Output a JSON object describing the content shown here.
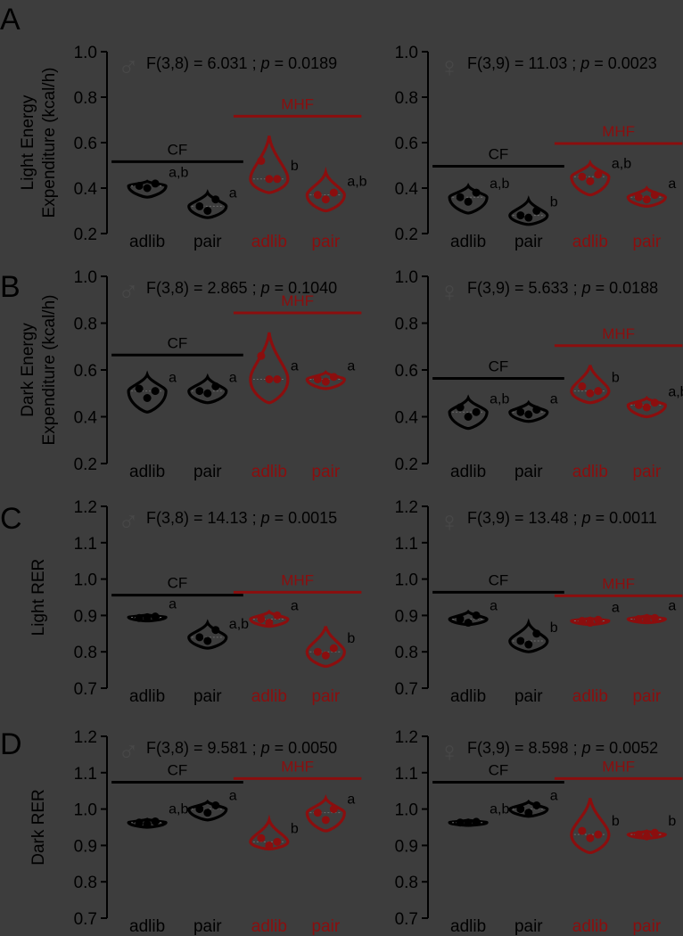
{
  "colors": {
    "background": "#3d3d3d",
    "cf": "#000000",
    "mhf": "#8b0e0e",
    "median_line": "#6a6a6a"
  },
  "panel_letters": [
    "A",
    "B",
    "C",
    "D"
  ],
  "chart_data": [
    {
      "panel": "A",
      "sex": "male",
      "sex_symbol": "♂",
      "type": "violin",
      "ylabel_lines": [
        "Light Energy",
        "Expenditure (kcal/h)"
      ],
      "ylim": [
        0.2,
        1.0
      ],
      "yticks": [
        "0.2",
        "0.4",
        "0.6",
        "0.8",
        "1.0"
      ],
      "stat": {
        "pre": "F(3,8) = 6.031 ; ",
        "p": "p",
        "post": " = 0.0189"
      },
      "categories": [
        "adlib",
        "pair",
        "adlib",
        "pair"
      ],
      "groups": [
        "CF",
        "CF",
        "MHF",
        "MHF"
      ],
      "group_labels": {
        "CF": "CF",
        "MHF": "MHF"
      },
      "letters": [
        "a,b",
        "a",
        "b",
        "a,b"
      ],
      "values": [
        [
          0.41,
          0.4,
          0.42
        ],
        [
          0.32,
          0.3,
          0.35
        ],
        [
          0.52,
          0.44,
          0.44
        ],
        [
          0.37,
          0.35,
          0.38
        ]
      ],
      "ranges": [
        [
          0.36,
          0.43
        ],
        [
          0.27,
          0.38
        ],
        [
          0.38,
          0.63
        ],
        [
          0.3,
          0.47
        ]
      ]
    },
    {
      "panel": "A",
      "sex": "female",
      "sex_symbol": "♀",
      "type": "violin",
      "ylabel_lines": [],
      "ylim": [
        0.2,
        1.0
      ],
      "yticks": [
        "0.2",
        "0.4",
        "0.6",
        "0.8",
        "1.0"
      ],
      "stat": {
        "pre": "F(3,9) = 11.03 ; ",
        "p": "p",
        "post": " = 0.0023"
      },
      "categories": [
        "adlib",
        "pair",
        "adlib",
        "pair"
      ],
      "groups": [
        "CF",
        "CF",
        "MHF",
        "MHF"
      ],
      "group_labels": {
        "CF": "CF",
        "MHF": "MHF"
      },
      "letters": [
        "a,b",
        "b",
        "a,b",
        "a"
      ],
      "values": [
        [
          0.36,
          0.34,
          0.38
        ],
        [
          0.28,
          0.27,
          0.3
        ],
        [
          0.45,
          0.43,
          0.46
        ],
        [
          0.36,
          0.35,
          0.37
        ]
      ],
      "ranges": [
        [
          0.29,
          0.41
        ],
        [
          0.24,
          0.35
        ],
        [
          0.37,
          0.51
        ],
        [
          0.32,
          0.4
        ]
      ]
    },
    {
      "panel": "B",
      "sex": "male",
      "sex_symbol": "♂",
      "type": "violin",
      "ylabel_lines": [
        "Dark Energy",
        "Expenditure (kcal/h)"
      ],
      "ylim": [
        0.2,
        1.0
      ],
      "yticks": [
        "0.2",
        "0.4",
        "0.6",
        "0.8",
        "1.0"
      ],
      "stat": {
        "pre": "F(3,8) = 2.865 ; ",
        "p": "p",
        "post": " = 0.1040"
      },
      "categories": [
        "adlib",
        "pair",
        "adlib",
        "pair"
      ],
      "groups": [
        "CF",
        "CF",
        "MHF",
        "MHF"
      ],
      "group_labels": {
        "CF": "CF",
        "MHF": "MHF"
      },
      "letters": [
        "a",
        "a",
        "a",
        "a"
      ],
      "values": [
        [
          0.52,
          0.48,
          0.51
        ],
        [
          0.51,
          0.5,
          0.53
        ],
        [
          0.66,
          0.56,
          0.56
        ],
        [
          0.56,
          0.55,
          0.57
        ]
      ],
      "ranges": [
        [
          0.42,
          0.58
        ],
        [
          0.46,
          0.57
        ],
        [
          0.46,
          0.76
        ],
        [
          0.52,
          0.59
        ]
      ]
    },
    {
      "panel": "B",
      "sex": "female",
      "sex_symbol": "♀",
      "type": "violin",
      "ylabel_lines": [],
      "ylim": [
        0.2,
        1.0
      ],
      "yticks": [
        "0.2",
        "0.4",
        "0.6",
        "0.8",
        "1.0"
      ],
      "stat": {
        "pre": "F(3,9) = 5.633 ; ",
        "p": "p",
        "post": " = 0.0188"
      },
      "categories": [
        "adlib",
        "pair",
        "adlib",
        "pair"
      ],
      "groups": [
        "CF",
        "CF",
        "MHF",
        "MHF"
      ],
      "group_labels": {
        "CF": "CF",
        "MHF": "MHF"
      },
      "letters": [
        "a,b",
        "a",
        "b",
        "a,b"
      ],
      "values": [
        [
          0.44,
          0.4,
          0.42
        ],
        [
          0.42,
          0.41,
          0.43
        ],
        [
          0.53,
          0.5,
          0.51
        ],
        [
          0.45,
          0.44,
          0.46
        ]
      ],
      "ranges": [
        [
          0.35,
          0.48
        ],
        [
          0.38,
          0.46
        ],
        [
          0.46,
          0.62
        ],
        [
          0.4,
          0.48
        ]
      ]
    },
    {
      "panel": "C",
      "sex": "male",
      "sex_symbol": "♂",
      "type": "violin",
      "ylabel_lines": [
        "Light RER"
      ],
      "ylim": [
        0.7,
        1.2
      ],
      "yticks": [
        "0.7",
        "0.8",
        "0.9",
        "1.0",
        "1.1",
        "1.2"
      ],
      "stat": {
        "pre": "F(3,8) = 14.13 ; ",
        "p": "p",
        "post": " = 0.0015"
      },
      "categories": [
        "adlib",
        "pair",
        "adlib",
        "pair"
      ],
      "groups": [
        "CF",
        "CF",
        "MHF",
        "MHF"
      ],
      "group_labels": {
        "CF": "CF",
        "MHF": "MHF"
      },
      "letters": [
        "a",
        "a,b",
        "a",
        "b"
      ],
      "values": [
        [
          0.893,
          0.895,
          0.897
        ],
        [
          0.84,
          0.83,
          0.86
        ],
        [
          0.89,
          0.88,
          0.9
        ],
        [
          0.8,
          0.79,
          0.81
        ]
      ],
      "ranges": [
        [
          0.885,
          0.902
        ],
        [
          0.81,
          0.88
        ],
        [
          0.87,
          0.91
        ],
        [
          0.76,
          0.87
        ]
      ]
    },
    {
      "panel": "C",
      "sex": "female",
      "sex_symbol": "♀",
      "type": "violin",
      "ylabel_lines": [],
      "ylim": [
        0.7,
        1.2
      ],
      "yticks": [
        "0.7",
        "0.8",
        "0.9",
        "1.0",
        "1.1",
        "1.2"
      ],
      "stat": {
        "pre": "F(3,9) = 13.48 ; ",
        "p": "p",
        "post": " = 0.0011"
      },
      "categories": [
        "adlib",
        "pair",
        "adlib",
        "pair"
      ],
      "groups": [
        "CF",
        "CF",
        "MHF",
        "MHF"
      ],
      "group_labels": {
        "CF": "CF",
        "MHF": "MHF"
      },
      "letters": [
        "a",
        "b",
        "a",
        "a"
      ],
      "values": [
        [
          0.89,
          0.88,
          0.9
        ],
        [
          0.83,
          0.82,
          0.85
        ],
        [
          0.885,
          0.88,
          0.888
        ],
        [
          0.89,
          0.888,
          0.893
        ]
      ],
      "ranges": [
        [
          0.875,
          0.91
        ],
        [
          0.8,
          0.88
        ],
        [
          0.875,
          0.893
        ],
        [
          0.88,
          0.9
        ]
      ]
    },
    {
      "panel": "D",
      "sex": "male",
      "sex_symbol": "♂",
      "type": "violin",
      "ylabel_lines": [
        "Dark RER"
      ],
      "ylim": [
        0.7,
        1.2
      ],
      "yticks": [
        "0.7",
        "0.8",
        "0.9",
        "1.0",
        "1.1",
        "1.2"
      ],
      "stat": {
        "pre": "F(3,8) = 9.581 ; ",
        "p": "p",
        "post": " = 0.0050"
      },
      "categories": [
        "adlib",
        "pair",
        "adlib",
        "pair"
      ],
      "groups": [
        "CF",
        "CF",
        "MHF",
        "MHF"
      ],
      "group_labels": {
        "CF": "CF",
        "MHF": "MHF"
      },
      "letters": [
        "a,b",
        "a",
        "b",
        "a"
      ],
      "values": [
        [
          0.963,
          0.958,
          0.966
        ],
        [
          1.0,
          0.99,
          1.01
        ],
        [
          0.92,
          0.9,
          0.91
        ],
        [
          0.99,
          0.97,
          1.0
        ]
      ],
      "ranges": [
        [
          0.95,
          0.972
        ],
        [
          0.97,
          1.02
        ],
        [
          0.89,
          0.97
        ],
        [
          0.94,
          1.03
        ]
      ]
    },
    {
      "panel": "D",
      "sex": "female",
      "sex_symbol": "♀",
      "type": "violin",
      "ylabel_lines": [],
      "ylim": [
        0.7,
        1.2
      ],
      "yticks": [
        "0.7",
        "0.8",
        "0.9",
        "1.0",
        "1.1",
        "1.2"
      ],
      "stat": {
        "pre": "F(3,9) = 8.598 ; ",
        "p": "p",
        "post": " = 0.0052"
      },
      "categories": [
        "adlib",
        "pair",
        "adlib",
        "pair"
      ],
      "groups": [
        "CF",
        "CF",
        "MHF",
        "MHF"
      ],
      "group_labels": {
        "CF": "CF",
        "MHF": "MHF"
      },
      "letters": [
        "a,b",
        "a",
        "b",
        "b"
      ],
      "values": [
        [
          0.963,
          0.962,
          0.965
        ],
        [
          1.0,
          0.99,
          1.01
        ],
        [
          0.94,
          0.92,
          0.93
        ],
        [
          0.93,
          0.925,
          0.935
        ]
      ],
      "ranges": [
        [
          0.955,
          0.97
        ],
        [
          0.98,
          1.02
        ],
        [
          0.88,
          1.03
        ],
        [
          0.92,
          0.94
        ]
      ]
    }
  ]
}
